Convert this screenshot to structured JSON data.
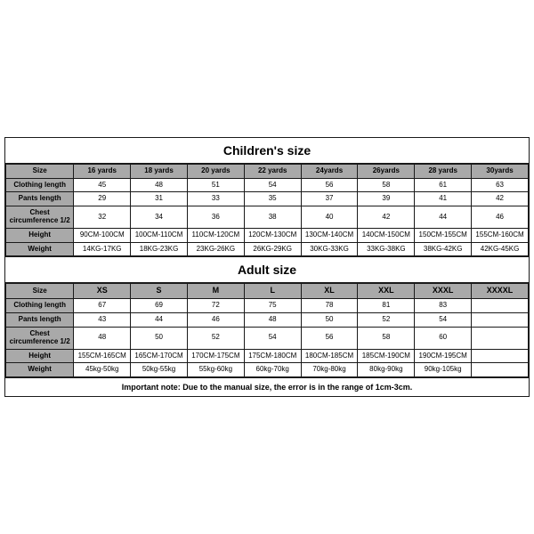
{
  "colors": {
    "border": "#1a1a1a",
    "header_bg": "#a9a9a9",
    "body_bg": "#ffffff",
    "page_bg": "#ffffff",
    "text": "#000000"
  },
  "typography": {
    "title_fontsize_pt": 14,
    "header_fontsize_pt": 8,
    "cell_fontsize_pt": 8,
    "note_fontsize_pt": 9,
    "font_family": "Arial"
  },
  "layout": {
    "label_col_width_pct": 13,
    "data_col_width_pct": 10.875
  },
  "children": {
    "title": "Children's size",
    "columns": [
      "Size",
      "16 yards",
      "18 yards",
      "20 yards",
      "22 yards",
      "24yards",
      "26yards",
      "28 yards",
      "30yards"
    ],
    "rows": [
      {
        "label": "Clothing length",
        "values": [
          "45",
          "48",
          "51",
          "54",
          "56",
          "58",
          "61",
          "63"
        ]
      },
      {
        "label": "Pants length",
        "values": [
          "29",
          "31",
          "33",
          "35",
          "37",
          "39",
          "41",
          "42"
        ]
      },
      {
        "label": "Chest circumference 1/2",
        "values": [
          "32",
          "34",
          "36",
          "38",
          "40",
          "42",
          "44",
          "46"
        ]
      },
      {
        "label": "Height",
        "values": [
          "90CM-100CM",
          "100CM-110CM",
          "110CM-120CM",
          "120CM-130CM",
          "130CM-140CM",
          "140CM-150CM",
          "150CM-155CM",
          "155CM-160CM"
        ]
      },
      {
        "label": "Weight",
        "values": [
          "14KG-17KG",
          "18KG-23KG",
          "23KG-26KG",
          "26KG-29KG",
          "30KG-33KG",
          "33KG-38KG",
          "38KG-42KG",
          "42KG-45KG"
        ]
      }
    ]
  },
  "adult": {
    "title": "Adult size",
    "columns": [
      "Size",
      "XS",
      "S",
      "M",
      "L",
      "XL",
      "XXL",
      "XXXL",
      "XXXXL"
    ],
    "rows": [
      {
        "label": "Clothing length",
        "values": [
          "67",
          "69",
          "72",
          "75",
          "78",
          "81",
          "83",
          ""
        ]
      },
      {
        "label": "Pants length",
        "values": [
          "43",
          "44",
          "46",
          "48",
          "50",
          "52",
          "54",
          ""
        ]
      },
      {
        "label": "Chest circumference 1/2",
        "values": [
          "48",
          "50",
          "52",
          "54",
          "56",
          "58",
          "60",
          ""
        ]
      },
      {
        "label": "Height",
        "values": [
          "155CM-165CM",
          "165CM-170CM",
          "170CM-175CM",
          "175CM-180CM",
          "180CM-185CM",
          "185CM-190CM",
          "190CM-195CM",
          ""
        ]
      },
      {
        "label": "Weight",
        "values": [
          "45kg-50kg",
          "50kg-55kg",
          "55kg-60kg",
          "60kg-70kg",
          "70kg-80kg",
          "80kg-90kg",
          "90kg-105kg",
          ""
        ]
      }
    ]
  },
  "note": "Important note: Due to the manual size, the error is in the range of 1cm-3cm."
}
